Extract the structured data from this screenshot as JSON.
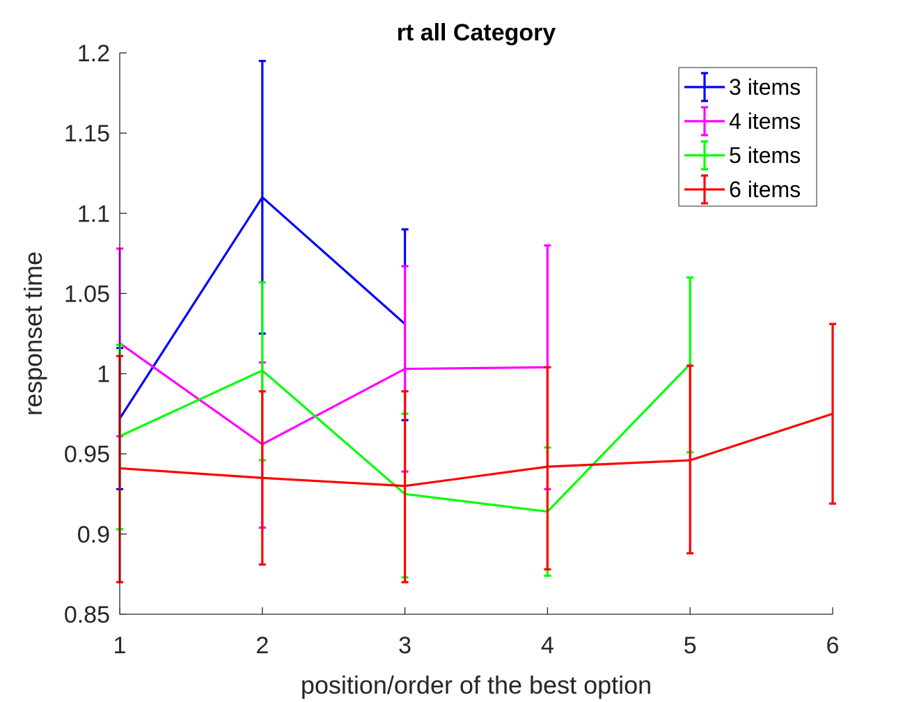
{
  "chart_data": {
    "type": "line",
    "title": "rt all Category",
    "xlabel": "position/order of the best option",
    "ylabel": "responset time",
    "xlim": [
      1,
      6
    ],
    "ylim": [
      0.85,
      1.2
    ],
    "x_ticks": [
      "1",
      "2",
      "3",
      "4",
      "5",
      "6"
    ],
    "y_ticks": [
      "0.85",
      "0.9",
      "0.95",
      "1",
      "1.05",
      "1.1",
      "1.15",
      "1.2"
    ],
    "grid": false,
    "legend_position": "top-right",
    "error_bars": true,
    "series": [
      {
        "name": "3 items",
        "color": "#0000ff",
        "x": [
          1,
          2,
          3
        ],
        "y": [
          0.972,
          1.11,
          1.031
        ],
        "err_low": [
          0.928,
          1.025,
          0.971
        ],
        "err_high": [
          1.016,
          1.195,
          1.09
        ]
      },
      {
        "name": "4 items",
        "color": "#ff00ff",
        "x": [
          1,
          2,
          3,
          4
        ],
        "y": [
          1.019,
          0.956,
          1.003,
          1.004
        ],
        "err_low": [
          0.961,
          0.904,
          0.939,
          0.928
        ],
        "err_high": [
          1.078,
          1.007,
          1.067,
          1.08
        ]
      },
      {
        "name": "5 items",
        "color": "#00ff00",
        "x": [
          1,
          2,
          3,
          4,
          5
        ],
        "y": [
          0.961,
          1.002,
          0.925,
          0.914,
          1.006
        ],
        "err_low": [
          0.903,
          0.946,
          0.873,
          0.874,
          0.951
        ],
        "err_high": [
          1.018,
          1.057,
          0.975,
          0.954,
          1.06
        ]
      },
      {
        "name": "6 items",
        "color": "#ff0000",
        "x": [
          1,
          2,
          3,
          4,
          5,
          6
        ],
        "y": [
          0.941,
          0.935,
          0.93,
          0.942,
          0.946,
          0.975
        ],
        "err_low": [
          0.87,
          0.881,
          0.87,
          0.878,
          0.888,
          0.919
        ],
        "err_high": [
          1.011,
          0.989,
          0.989,
          1.004,
          1.005,
          1.031
        ]
      }
    ]
  }
}
